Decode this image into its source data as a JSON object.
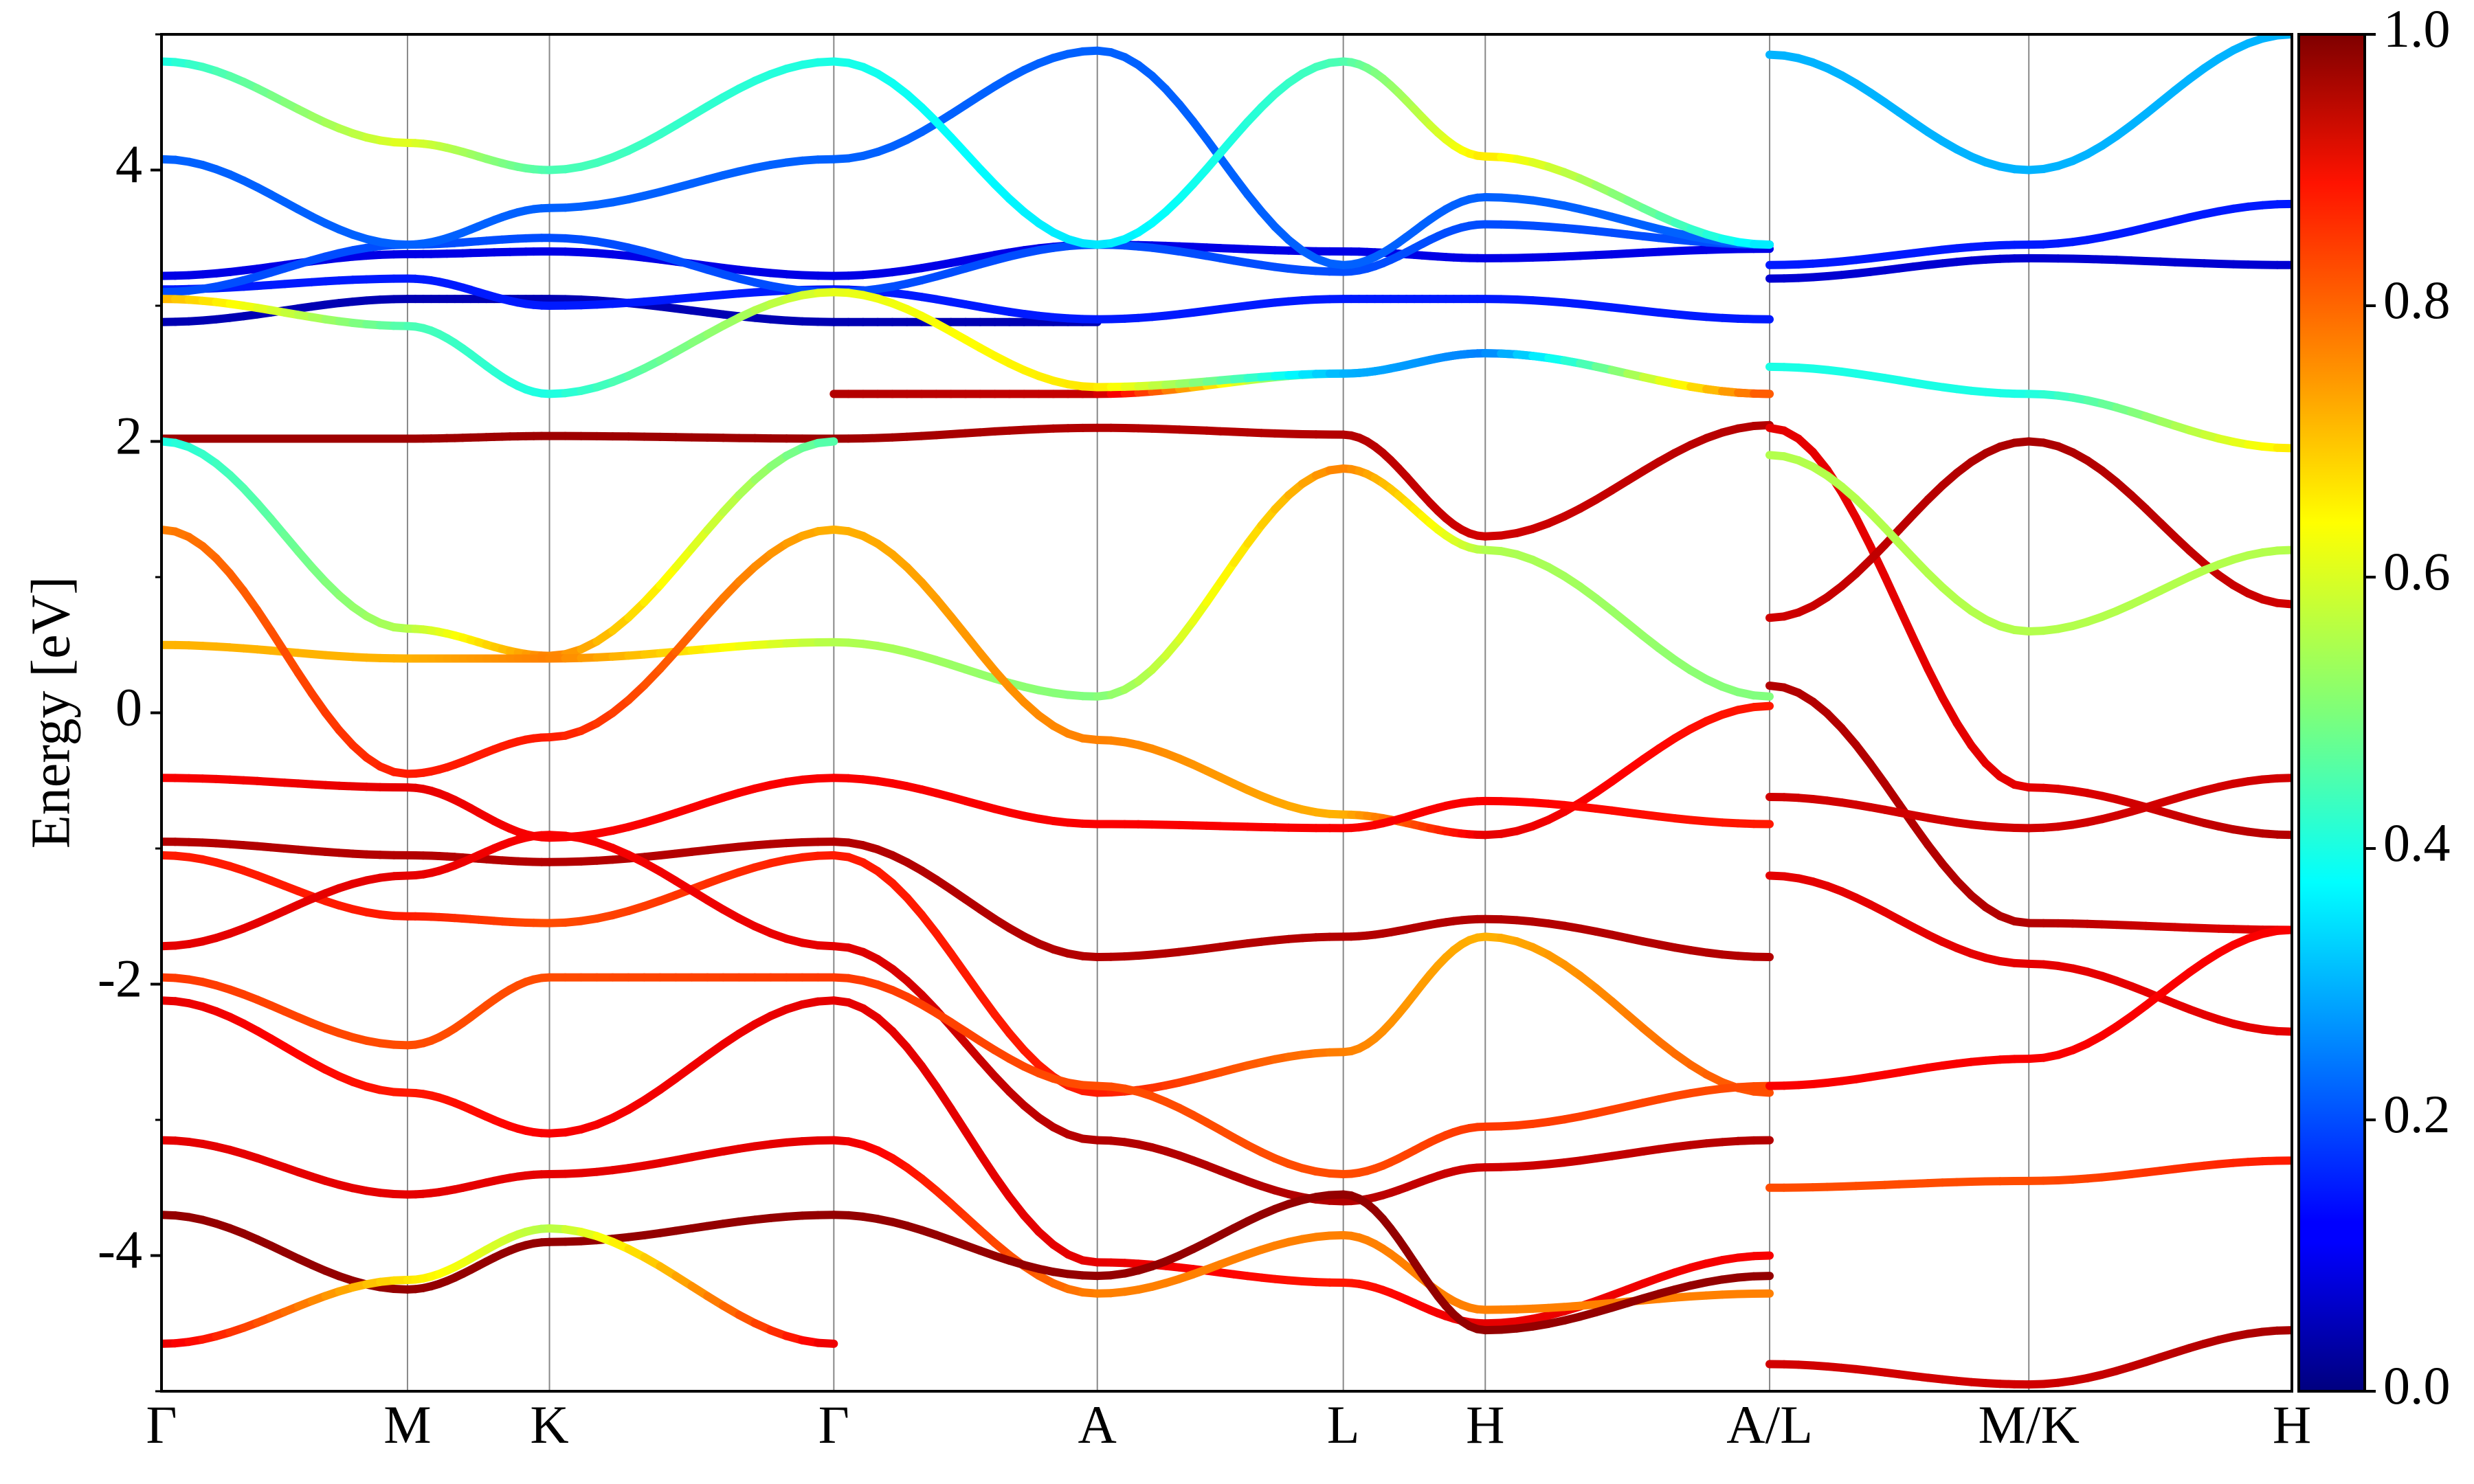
{
  "chart_data": {
    "type": "line",
    "title": "",
    "xlabel": "",
    "ylabel": "Energy [eV]",
    "ylim": [
      -5,
      5
    ],
    "y_ticks": [
      -4,
      -2,
      0,
      2,
      4
    ],
    "y_tick_labels": [
      "-4",
      "-2",
      "0",
      "2",
      "4"
    ],
    "y_minor_ticks": [
      -5,
      -3,
      -1,
      1,
      3,
      5
    ],
    "grid": "vertical lines at high-symmetry points",
    "kpath": {
      "labels": [
        "Γ",
        "M",
        "K",
        "Γ",
        "A",
        "L",
        "H",
        "A/L",
        "M/K",
        "H"
      ],
      "positions": [
        0,
        0.577,
        0.91,
        1.577,
        2.195,
        2.772,
        3.105,
        3.772,
        4.38,
        4.997
      ]
    },
    "colorbar": {
      "label": "",
      "range": [
        0.0,
        1.0
      ],
      "ticks": [
        0.0,
        0.2,
        0.4,
        0.6,
        0.8,
        1.0
      ],
      "tick_labels": [
        "0.0",
        "0.2",
        "0.4",
        "0.6",
        "0.8",
        "1.0"
      ],
      "colormap": "jet"
    },
    "series": [
      {
        "x": [
          0,
          0.577,
          0.91,
          1.577,
          2.195,
          2.772,
          3.105,
          3.772
        ],
        "y": [
          2.02,
          2.02,
          2.04,
          2.02,
          2.1,
          2.05,
          1.3,
          2.12
        ],
        "w": [
          0.97,
          0.97,
          0.97,
          0.97,
          0.95,
          0.95,
          0.92,
          0.95
        ]
      },
      {
        "x": [
          1.577,
          2.195,
          2.772,
          3.105,
          3.772
        ],
        "y": [
          2.35,
          2.35,
          2.5,
          2.65,
          2.35
        ],
        "w": [
          0.95,
          0.93,
          0.35,
          0.25,
          0.85
        ]
      },
      {
        "x": [
          0,
          0.577,
          0.91,
          1.577
        ],
        "y": [
          2.0,
          0.62,
          0.42,
          2.0
        ],
        "w": [
          0.4,
          0.55,
          0.75,
          0.45
        ]
      },
      {
        "x": [
          0,
          0.577,
          0.91,
          1.577,
          2.195,
          2.772,
          3.105,
          3.772
        ],
        "y": [
          0.5,
          0.4,
          0.4,
          0.52,
          0.12,
          1.8,
          1.2,
          0.12
        ],
        "w": [
          0.7,
          0.7,
          0.75,
          0.55,
          0.5,
          0.75,
          0.55,
          0.5
        ]
      },
      {
        "x": [
          0,
          0.577,
          0.91,
          1.577,
          2.195,
          2.772,
          3.105,
          3.772
        ],
        "y": [
          1.35,
          -0.45,
          -0.18,
          1.35,
          -0.2,
          -0.75,
          -0.9,
          0.05
        ],
        "w": [
          0.75,
          0.85,
          0.85,
          0.7,
          0.75,
          0.7,
          0.9,
          0.85
        ]
      },
      {
        "x": [
          0,
          0.577,
          0.91,
          1.577,
          2.195,
          2.772,
          3.105,
          3.772
        ],
        "y": [
          -0.48,
          -0.55,
          -0.92,
          -0.48,
          -0.82,
          -0.85,
          -0.65,
          -0.82
        ],
        "w": [
          0.88,
          0.9,
          0.88,
          0.88,
          0.88,
          0.88,
          0.88,
          0.85
        ]
      },
      {
        "x": [
          0,
          0.577,
          0.91,
          1.577,
          2.195,
          2.772,
          3.105,
          3.772
        ],
        "y": [
          -0.95,
          -1.05,
          -1.1,
          -0.95,
          -1.8,
          -1.65,
          -1.52,
          -1.8
        ],
        "w": [
          0.95,
          0.95,
          0.95,
          0.95,
          0.95,
          0.95,
          0.95,
          0.95
        ]
      },
      {
        "x": [
          0,
          0.577,
          0.91,
          1.577,
          2.195,
          2.772,
          3.105,
          3.772
        ],
        "y": [
          -1.05,
          -1.5,
          -1.55,
          -1.05,
          -2.8,
          -2.5,
          -1.65,
          -2.8
        ],
        "w": [
          0.85,
          0.85,
          0.8,
          0.85,
          0.85,
          0.75,
          0.7,
          0.8
        ]
      },
      {
        "x": [
          0,
          0.577,
          0.91,
          1.577,
          2.195,
          2.772,
          3.105,
          3.772
        ],
        "y": [
          -1.72,
          -1.2,
          -0.9,
          -1.72,
          -3.15,
          -3.6,
          -3.35,
          -3.15
        ],
        "w": [
          0.9,
          0.9,
          0.88,
          0.9,
          0.95,
          0.95,
          0.92,
          0.95
        ]
      },
      {
        "x": [
          0,
          0.577,
          0.91,
          1.577,
          2.195,
          2.772,
          3.105,
          3.772
        ],
        "y": [
          -1.95,
          -2.45,
          -1.95,
          -1.95,
          -2.75,
          -3.4,
          -3.05,
          -2.75
        ],
        "w": [
          0.82,
          0.8,
          0.8,
          0.82,
          0.8,
          0.8,
          0.82,
          0.8
        ]
      },
      {
        "x": [
          0,
          0.577,
          0.91,
          1.577,
          2.195,
          2.772,
          3.105,
          3.772
        ],
        "y": [
          -2.12,
          -2.8,
          -3.1,
          -2.12,
          -4.05,
          -4.2,
          -4.5,
          -4.0
        ],
        "w": [
          0.9,
          0.85,
          0.88,
          0.9,
          0.9,
          0.85,
          0.9,
          0.88
        ]
      },
      {
        "x": [
          0,
          0.577,
          0.91,
          1.577,
          2.195,
          2.772,
          3.105,
          3.772
        ],
        "y": [
          -3.15,
          -3.55,
          -3.4,
          -3.15,
          -4.28,
          -3.85,
          -4.4,
          -4.28
        ],
        "w": [
          0.9,
          0.9,
          0.9,
          0.9,
          0.75,
          0.75,
          0.75,
          0.75
        ]
      },
      {
        "x": [
          0,
          0.577,
          0.91,
          1.577,
          2.195,
          2.772,
          3.105,
          3.772
        ],
        "y": [
          -3.7,
          -4.25,
          -3.9,
          -3.7,
          -4.15,
          -3.55,
          -4.55,
          -4.15
        ],
        "w": [
          0.98,
          0.98,
          0.98,
          0.98,
          0.98,
          0.98,
          0.98,
          0.98
        ]
      },
      {
        "x": [
          0,
          0.577,
          0.91,
          1.577
        ],
        "y": [
          -4.65,
          -4.18,
          -3.8,
          -4.65
        ],
        "w": [
          0.9,
          0.65,
          0.55,
          0.9
        ]
      },
      {
        "x": [
          0,
          0.577,
          0.91,
          1.577,
          2.195
        ],
        "y": [
          2.88,
          3.05,
          3.05,
          2.88,
          2.88
        ],
        "w": [
          0.05,
          0.05,
          0.05,
          0.05,
          0.05
        ]
      },
      {
        "x": [
          0,
          0.577,
          0.91,
          1.577,
          2.195,
          2.772,
          3.105,
          3.772
        ],
        "y": [
          3.22,
          3.38,
          3.4,
          3.22,
          3.45,
          3.4,
          3.35,
          3.42
        ],
        "w": [
          0.1,
          0.1,
          0.1,
          0.1,
          0.1,
          0.1,
          0.1,
          0.1
        ]
      },
      {
        "x": [
          0,
          0.577,
          0.91,
          1.577,
          2.195,
          2.772,
          3.105,
          3.772
        ],
        "y": [
          3.12,
          3.2,
          3.0,
          3.12,
          2.9,
          3.05,
          3.05,
          2.9
        ],
        "w": [
          0.15,
          0.15,
          0.15,
          0.15,
          0.15,
          0.15,
          0.15,
          0.15
        ]
      },
      {
        "x": [
          0,
          0.577,
          0.91,
          1.577,
          2.195,
          2.772,
          3.105,
          3.772
        ],
        "y": [
          3.1,
          3.45,
          3.5,
          3.1,
          3.45,
          3.25,
          3.6,
          3.45
        ],
        "w": [
          0.2,
          0.2,
          0.2,
          0.2,
          0.2,
          0.2,
          0.2,
          0.2
        ]
      },
      {
        "x": [
          0,
          0.577,
          0.91,
          1.577,
          2.195,
          2.772,
          3.105,
          3.772
        ],
        "y": [
          4.08,
          3.45,
          3.72,
          4.08,
          4.88,
          3.3,
          3.8,
          3.45
        ],
        "w": [
          0.22,
          0.22,
          0.22,
          0.22,
          0.22,
          0.22,
          0.22,
          0.22
        ]
      },
      {
        "x": [
          0,
          0.577,
          0.91,
          1.577,
          2.195,
          2.772,
          3.105,
          3.772
        ],
        "y": [
          3.05,
          2.85,
          2.35,
          3.1,
          2.4,
          2.5,
          2.65,
          2.35
        ],
        "w": [
          0.7,
          0.45,
          0.4,
          0.6,
          0.65,
          0.3,
          0.25,
          0.8
        ]
      },
      {
        "x": [
          0,
          0.577,
          0.91,
          1.577,
          2.195,
          2.772,
          3.105,
          3.772
        ],
        "y": [
          4.8,
          4.2,
          4.0,
          4.8,
          3.45,
          4.8,
          4.1,
          3.45
        ],
        "w": [
          0.4,
          0.6,
          0.45,
          0.4,
          0.35,
          0.45,
          0.65,
          0.35
        ]
      },
      {
        "x": [
          3.772,
          4.38,
          4.997
        ],
        "y": [
          2.1,
          -0.55,
          -0.9
        ],
        "w": [
          0.9,
          0.9,
          0.95
        ]
      },
      {
        "x": [
          3.772,
          4.38,
          4.997
        ],
        "y": [
          0.2,
          -1.55,
          -1.6
        ],
        "w": [
          0.95,
          0.95,
          0.9
        ]
      },
      {
        "x": [
          3.772,
          4.38,
          4.997
        ],
        "y": [
          -0.62,
          -0.85,
          -0.48
        ],
        "w": [
          0.92,
          0.92,
          0.92
        ]
      },
      {
        "x": [
          3.772,
          4.38,
          4.997
        ],
        "y": [
          -1.2,
          -1.85,
          -2.35
        ],
        "w": [
          0.9,
          0.9,
          0.9
        ]
      },
      {
        "x": [
          3.772,
          4.38,
          4.997
        ],
        "y": [
          -2.75,
          -2.55,
          -1.6
        ],
        "w": [
          0.88,
          0.88,
          0.88
        ]
      },
      {
        "x": [
          3.772,
          4.38,
          4.997
        ],
        "y": [
          -3.5,
          -3.45,
          -3.3
        ],
        "w": [
          0.8,
          0.8,
          0.85
        ]
      },
      {
        "x": [
          3.772,
          4.38,
          4.997
        ],
        "y": [
          -4.8,
          -4.95,
          -4.55
        ],
        "w": [
          0.92,
          0.92,
          0.96
        ]
      },
      {
        "x": [
          3.772,
          4.38,
          4.997
        ],
        "y": [
          0.7,
          2.0,
          0.8
        ],
        "w": [
          0.92,
          0.96,
          0.92
        ]
      },
      {
        "x": [
          3.772,
          4.38,
          4.997
        ],
        "y": [
          1.9,
          0.6,
          1.2
        ],
        "w": [
          0.55,
          0.55,
          0.55
        ]
      },
      {
        "x": [
          3.772,
          4.38,
          4.997
        ],
        "y": [
          2.55,
          2.35,
          1.95
        ],
        "w": [
          0.4,
          0.4,
          0.65
        ]
      },
      {
        "x": [
          3.772,
          4.38,
          4.997
        ],
        "y": [
          3.3,
          3.45,
          3.75
        ],
        "w": [
          0.15,
          0.15,
          0.15
        ]
      },
      {
        "x": [
          3.772,
          4.38,
          4.997
        ],
        "y": [
          4.85,
          4.0,
          5.0
        ],
        "w": [
          0.3,
          0.3,
          0.3
        ]
      },
      {
        "x": [
          3.772,
          4.38,
          4.997
        ],
        "y": [
          3.2,
          3.35,
          3.3
        ],
        "w": [
          0.08,
          0.08,
          0.08
        ]
      }
    ]
  }
}
